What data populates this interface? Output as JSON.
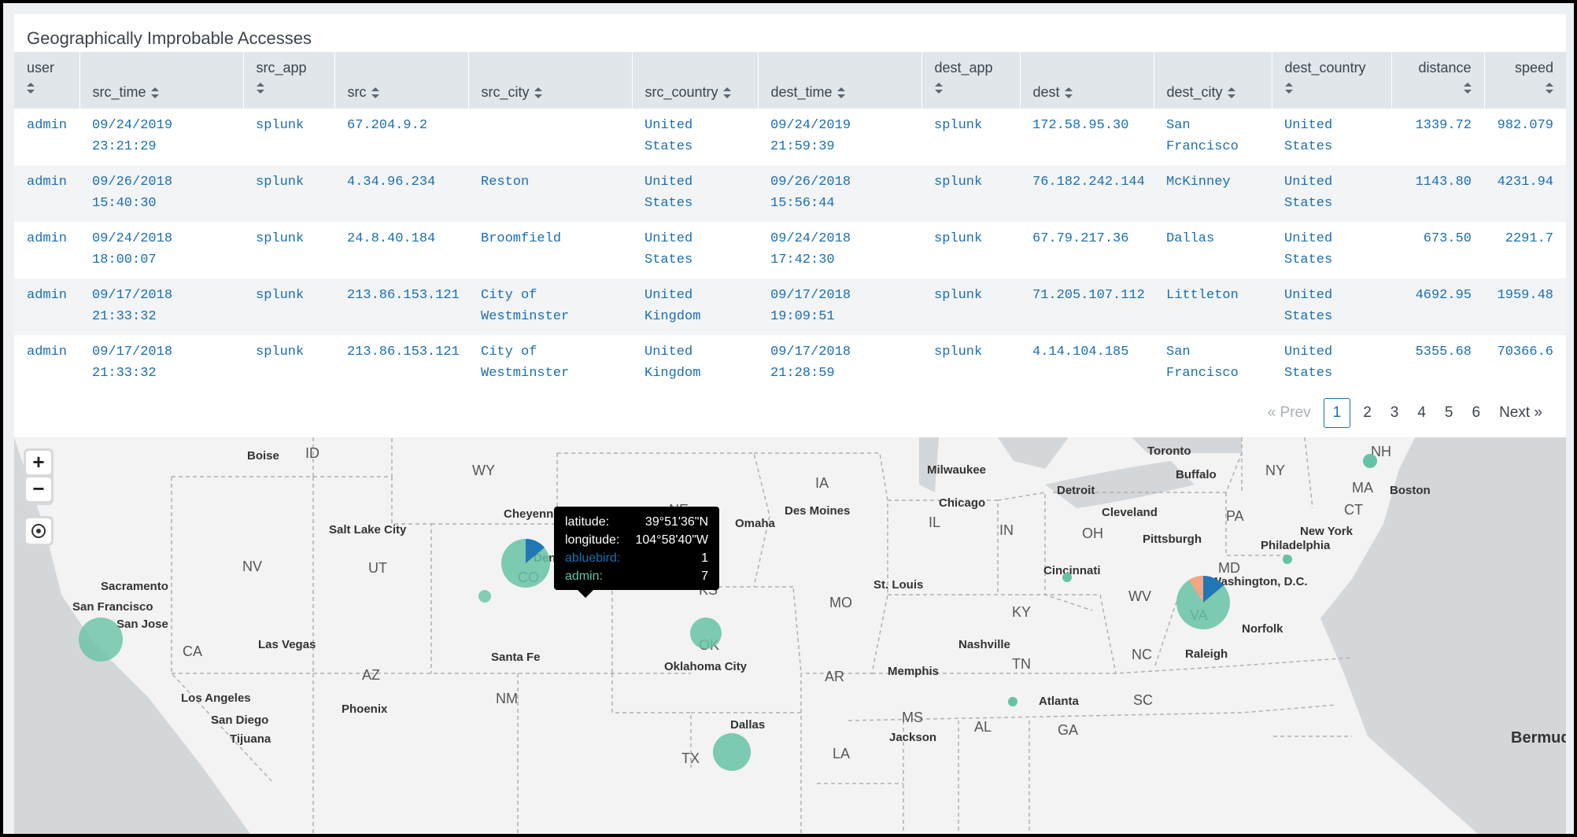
{
  "panel": {
    "title": "Geographically Improbable Accesses"
  },
  "table": {
    "columns": [
      {
        "label": "user",
        "layout": "two-line"
      },
      {
        "label": "src_time",
        "layout": "one-line"
      },
      {
        "label": "src_app",
        "layout": "two-line"
      },
      {
        "label": "src",
        "layout": "one-line"
      },
      {
        "label": "src_city",
        "layout": "one-line"
      },
      {
        "label": "src_country",
        "layout": "one-line"
      },
      {
        "label": "dest_time",
        "layout": "one-line"
      },
      {
        "label": "dest_app",
        "layout": "two-line"
      },
      {
        "label": "dest",
        "layout": "one-line"
      },
      {
        "label": "dest_city",
        "layout": "one-line"
      },
      {
        "label": "dest_country",
        "layout": "two-line"
      },
      {
        "label": "distance",
        "layout": "two-line-right"
      },
      {
        "label": "speed",
        "layout": "two-line-right"
      }
    ],
    "rows": [
      [
        "admin",
        "09/24/2019\n23:21:29",
        "splunk",
        "67.204.9.2",
        "",
        "United States",
        "09/24/2019\n21:59:39",
        "splunk",
        "172.58.95.30",
        "San\nFrancisco",
        "United\nStates",
        "1339.72",
        "982.079"
      ],
      [
        "admin",
        "09/26/2018\n15:40:30",
        "splunk",
        "4.34.96.234",
        "Reston",
        "United States",
        "09/26/2018\n15:56:44",
        "splunk",
        "76.182.242.144",
        "McKinney",
        "United\nStates",
        "1143.80",
        "4231.94"
      ],
      [
        "admin",
        "09/24/2018\n18:00:07",
        "splunk",
        "24.8.40.184",
        "Broomfield",
        "United States",
        "09/24/2018\n17:42:30",
        "splunk",
        "67.79.217.36",
        "Dallas",
        "United\nStates",
        "673.50",
        "2291.7"
      ],
      [
        "admin",
        "09/17/2018\n21:33:32",
        "splunk",
        "213.86.153.121",
        "City of\nWestminster",
        "United\nKingdom",
        "09/17/2018\n19:09:51",
        "splunk",
        "71.205.107.112",
        "Littleton",
        "United\nStates",
        "4692.95",
        "1959.48"
      ],
      [
        "admin",
        "09/17/2018\n21:33:32",
        "splunk",
        "213.86.153.121",
        "City of\nWestminster",
        "United\nKingdom",
        "09/17/2018\n21:28:59",
        "splunk",
        "4.14.104.185",
        "San\nFrancisco",
        "United\nStates",
        "5355.68",
        "70366.6"
      ]
    ]
  },
  "pager": {
    "prev": "« Prev",
    "pages": [
      "1",
      "2",
      "3",
      "4",
      "5",
      "6"
    ],
    "current": "1",
    "next": "Next »"
  },
  "map": {
    "zoom_in": "+",
    "zoom_out": "−",
    "state_labels": [
      "ID",
      "WY",
      "IA",
      "NH",
      "NY",
      "MA",
      "CT",
      "PA",
      "NE",
      "IL",
      "IN",
      "OH",
      "NV",
      "UT",
      "CO",
      "KS",
      "MO",
      "WV",
      "KY",
      "VA",
      "MD",
      "CA",
      "OK",
      "AZ",
      "NM",
      "AR",
      "TN",
      "NC",
      "SC",
      "MS",
      "AL",
      "GA",
      "LA",
      "TX"
    ],
    "city_labels": [
      "Boise",
      "Toronto",
      "Milwaukee",
      "Buffalo",
      "Detroit",
      "Boston",
      "Cheyenne",
      "Des Moines",
      "Chicago",
      "Cleveland",
      "Omaha",
      "Salt Lake City",
      "New York",
      "Pittsburgh",
      "Philadelphia",
      "Denver",
      "Sacramento",
      "Cincinnati",
      "Washington, D.C.",
      "St. Louis",
      "San Francisco",
      "San Jose",
      "Las Vegas",
      "Santa Fe",
      "Oklahoma City",
      "Nashville",
      "Raleigh",
      "Norfolk",
      "Memphis",
      "Los Angeles",
      "Phoenix",
      "Atlanta",
      "San Diego",
      "Tijuana",
      "Jackson",
      "Dallas",
      "Bermud"
    ],
    "tooltip": {
      "lat_label": "latitude:",
      "lat_value": "39°51'36\"N",
      "lon_label": "longitude:",
      "lon_value": "104°58'40\"W",
      "series1_label": "abluebird:",
      "series1_value": "1",
      "series2_label": "admin:",
      "series2_value": "7"
    },
    "colors": {
      "admin": "#66c2a5",
      "abluebird": "#1f77b4",
      "other": "#f4a582"
    }
  }
}
